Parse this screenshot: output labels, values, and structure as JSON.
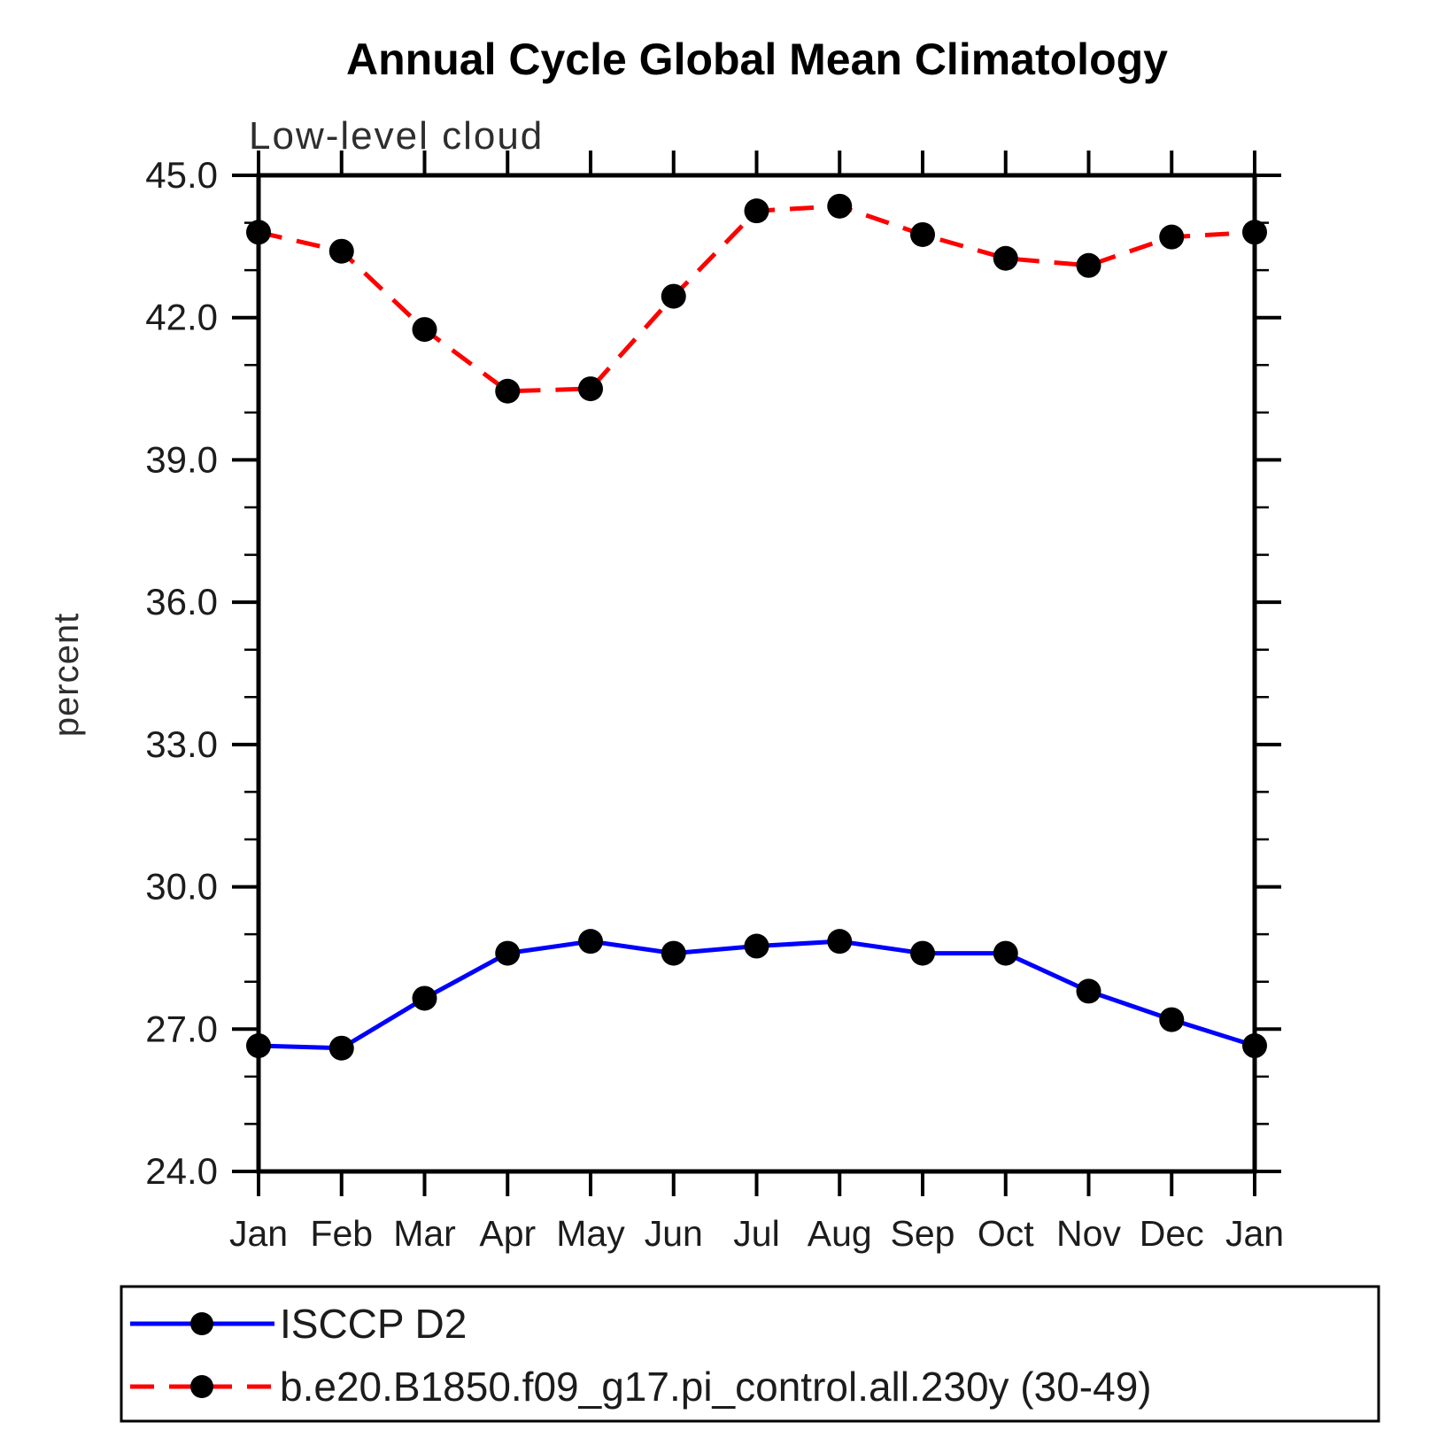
{
  "figure": {
    "background": "#ffffff",
    "axis_color": "#000000",
    "marker_shape": "filled-circle",
    "marker_color": "#000000"
  },
  "chart_data": {
    "type": "line",
    "title": "Annual Cycle Global Mean Climatology",
    "subtitle": "Low-level cloud",
    "ylabel": "percent",
    "xlabel": "",
    "categories": [
      "Jan",
      "Feb",
      "Mar",
      "Apr",
      "May",
      "Jun",
      "Jul",
      "Aug",
      "Sep",
      "Oct",
      "Nov",
      "Dec",
      "Jan"
    ],
    "ylim": [
      24.0,
      45.0
    ],
    "y_major_step": 3.0,
    "y_minor_step": 1.0,
    "y_tick_labels": [
      "24.0",
      "27.0",
      "30.0",
      "33.0",
      "36.0",
      "39.0",
      "42.0",
      "45.0"
    ],
    "grid": false,
    "legend_position": "bottom-box",
    "series": [
      {
        "name": "ISCCP D2",
        "color": "#0000ff",
        "line_style": "solid",
        "marker": "filled-circle",
        "marker_color": "#000000",
        "values": [
          26.65,
          26.6,
          27.65,
          28.6,
          28.85,
          28.6,
          28.75,
          28.85,
          28.6,
          28.6,
          27.8,
          27.2,
          26.65
        ]
      },
      {
        "name": "b.e20.B1850.f09_g17.pi_control.all.230y (30-49)",
        "color": "#ff0000",
        "line_style": "dashed",
        "marker": "filled-circle",
        "marker_color": "#000000",
        "values": [
          43.8,
          43.4,
          41.75,
          40.45,
          40.5,
          42.45,
          44.25,
          44.35,
          43.75,
          43.25,
          43.1,
          43.7,
          43.8
        ]
      }
    ]
  }
}
